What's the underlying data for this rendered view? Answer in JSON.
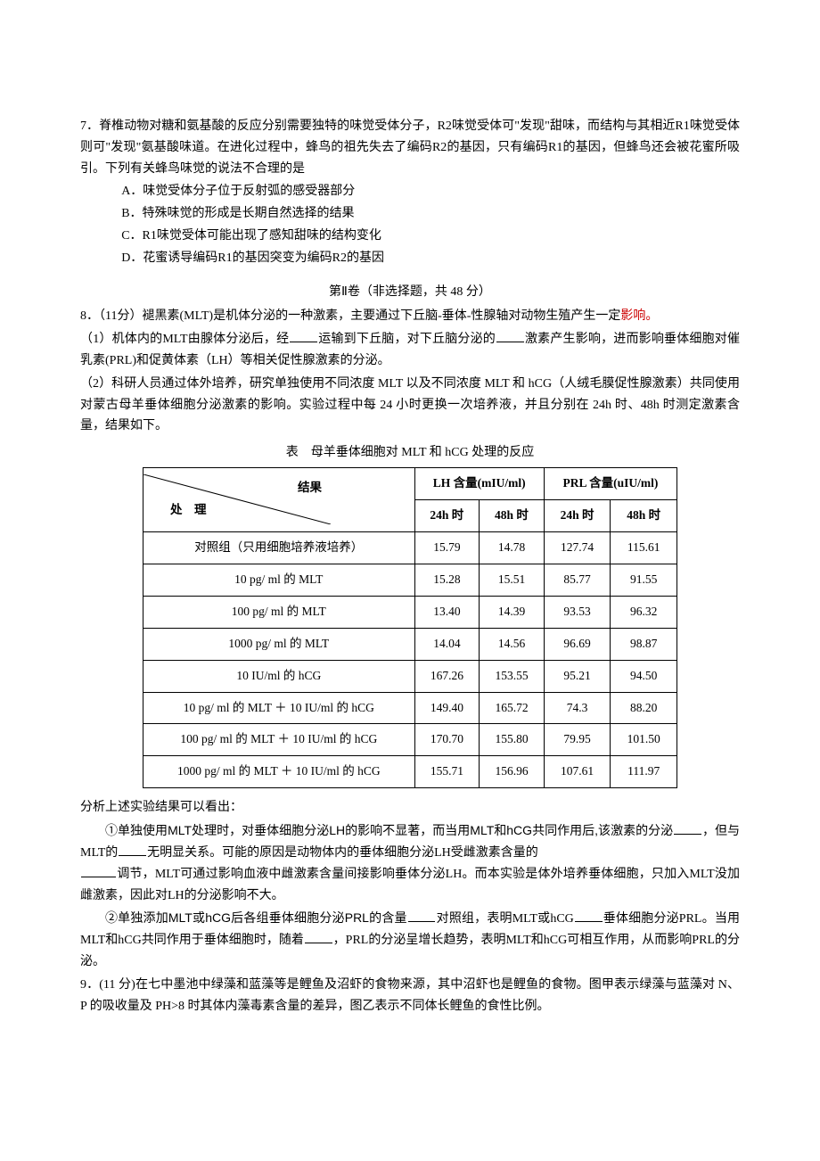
{
  "q7": {
    "num": "7．",
    "stem1": "脊椎动物对糖和氨基酸的反应分别需要独特的味觉受体分子，R2味觉受体可\"发现\"甜味，而结构与其相近R1味觉受体则可\"发现\"氨基酸味道。在进化过程中，蜂鸟的祖先失去了编码R2的基因，只有编码R1的基因，但蜂鸟还会被花蜜所吸引。下列有关蜂鸟味觉的说法不合理的是",
    "optA": "A．味觉受体分子位于反射弧的感受器部分",
    "optB": "B．特殊味觉的形成是长期自然选择的结果",
    "optC": "C．R1味觉受体可能出现了感知甜味的结构变化",
    "optD": "D．花蜜诱导编码R1的基因突变为编码R2的基因"
  },
  "sec2": "第Ⅱ卷（非选择题，共 48 分）",
  "q8": {
    "head": "8．（11分）褪黑素(MLT)是机体分泌的一种激素，主要通过下丘脑-垂体-性腺轴对动物生殖产生一定影响。",
    "p1a": "（1）机体内的MLT由腺体分泌后，经",
    "p1b": "运输到下丘脑，对下丘脑分泌的",
    "p1c": "激素产生影响，进而影响垂体细胞对催乳素(PRL)和促黄体素（LH）等相关促性腺激素的分泌。",
    "p2": "（2）科研人员通过体外培养，研究单独使用不同浓度 MLT 以及不同浓度 MLT 和 hCG（人绒毛膜促性腺激素）共同使用对蒙古母羊垂体细胞分泌激素的影响。实验过程中每 24 小时更换一次培养液，并且分别在 24h 时、48h 时测定激素含量，结果如下。",
    "caption": "表　母羊垂体细胞对 MLT 和 hCG 处理的反应"
  },
  "table": {
    "colgroup": {
      "lh": "LH 含量(mIU/ml)",
      "prl": "PRL 含量(uIU/ml)"
    },
    "sublabels": {
      "t24": "24h 时",
      "t48": "48h 时"
    },
    "diag": {
      "top": "结果",
      "bot": "处　理"
    },
    "rows": [
      {
        "label": "对照组（只用细胞培养液培养）",
        "d": [
          "15.79",
          "14.78",
          "127.74",
          "115.61"
        ]
      },
      {
        "label": "10 pg/ ml 的 MLT",
        "d": [
          "15.28",
          "15.51",
          "85.77",
          "91.55"
        ]
      },
      {
        "label": "100 pg/ ml 的 MLT",
        "d": [
          "13.40",
          "14.39",
          "93.53",
          "96.32"
        ]
      },
      {
        "label": "1000 pg/ ml 的 MLT",
        "d": [
          "14.04",
          "14.56",
          "96.69",
          "98.87"
        ]
      },
      {
        "label": "10 IU/ml 的 hCG",
        "d": [
          "167.26",
          "153.55",
          "95.21",
          "94.50"
        ]
      },
      {
        "label": "10 pg/ ml 的 MLT ＋ 10 IU/ml 的 hCG",
        "d": [
          "149.40",
          "165.72",
          "74.3",
          "88.20"
        ]
      },
      {
        "label": "100 pg/ ml 的 MLT ＋ 10 IU/ml 的 hCG",
        "d": [
          "170.70",
          "155.80",
          "79.95",
          "101.50"
        ]
      },
      {
        "label": "1000 pg/ ml 的 MLT ＋ 10 IU/ml 的 hCG",
        "d": [
          "155.71",
          "156.96",
          "107.61",
          "111.97"
        ]
      }
    ]
  },
  "analysis": {
    "head": "分析上述实验结果可以看出：",
    "c1a": "①单独使用MLT处理时，对垂体细胞分泌LH的影响不显著，而当用MLT和hCG共同作用后,该激素的分泌",
    "c1b": "，但与MLT的",
    "c1c": "无明显关系。可能的原因是动物体内的垂体细胞分泌LH受雌激素含量的",
    "c1d": "调节，MLT可通过影响血液中雌激素含量间接影响垂体分泌LH。而本实验是体外培养垂体细胞，只加入MLT没加雌激素，因此对LH的分泌影响不大。",
    "c2a": "②单独添加MLT或hCG后各组垂体细胞分泌PRL的含量",
    "c2b": "对照组，表明MLT或hCG",
    "c2c": "垂体细胞分泌PRL。当用MLT和hCG共同作用于垂体细胞时，随着",
    "c2d": "，PRL的分泌呈增长趋势，表明MLT和hCG可相互作用，从而影响PRL的分泌。"
  },
  "q9": {
    "text": "9．(11 分)在七中墨池中绿藻和蓝藻等是鲤鱼及沼虾的食物来源，其中沼虾也是鲤鱼的食物。图甲表示绿藻与蓝藻对 N、P 的吸收量及 PH>8 时其体内藻毒素含量的差异，图乙表示不同体长鲤鱼的食性比例。"
  }
}
